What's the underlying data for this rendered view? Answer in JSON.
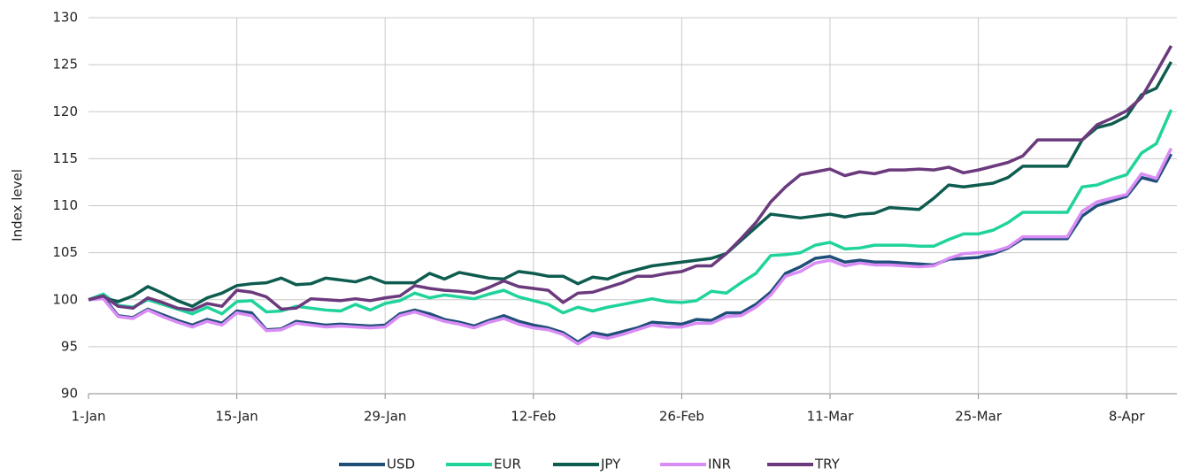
{
  "chart_data": {
    "type": "line",
    "y_label": "Index level",
    "categories": [
      "1-Jan",
      null,
      null,
      null,
      null,
      null,
      null,
      null,
      null,
      null,
      "15-Jan",
      null,
      null,
      null,
      null,
      null,
      null,
      null,
      null,
      null,
      "29-Jan",
      null,
      null,
      null,
      null,
      null,
      null,
      null,
      null,
      null,
      "12-Feb",
      null,
      null,
      null,
      null,
      null,
      null,
      null,
      null,
      null,
      "26-Feb",
      null,
      null,
      null,
      null,
      null,
      null,
      null,
      null,
      null,
      "11-Mar",
      null,
      null,
      null,
      null,
      null,
      null,
      null,
      null,
      null,
      "25-Mar",
      null,
      null,
      null,
      null,
      null,
      null,
      null,
      null,
      null,
      "8-Apr",
      null,
      null,
      null
    ],
    "ylim": [
      90,
      130
    ],
    "yticks": [
      90,
      95,
      100,
      105,
      110,
      115,
      120,
      125,
      130
    ],
    "grid": true,
    "legend": "bottom",
    "series": [
      {
        "name": "USD",
        "color": "#1f4e79",
        "values": [
          100,
          100.3,
          98.3,
          98.1,
          99,
          98.4,
          97.8,
          97.3,
          97.9,
          97.5,
          98.8,
          98.6,
          96.8,
          96.9,
          97.7,
          97.5,
          97.3,
          97.4,
          97.3,
          97.2,
          97.3,
          98.5,
          98.9,
          98.5,
          97.9,
          97.6,
          97.2,
          97.8,
          98.3,
          97.7,
          97.3,
          97.0,
          96.5,
          95.5,
          96.5,
          96.2,
          96.6,
          97.0,
          97.6,
          97.5,
          97.4,
          97.9,
          97.8,
          98.6,
          98.6,
          99.5,
          100.8,
          102.8,
          103.5,
          104.4,
          104.6,
          104.0,
          104.2,
          104.0,
          104.0,
          103.9,
          103.8,
          103.7,
          104.3,
          104.4,
          104.5,
          104.9,
          105.5,
          106.5,
          106.5,
          106.5,
          106.5,
          108.9,
          110.0,
          110.5,
          111.0,
          113.0,
          112.6,
          115.5
        ]
      },
      {
        "name": "EUR",
        "color": "#1fd39b",
        "values": [
          100,
          100.6,
          99.4,
          99.2,
          100,
          99.5,
          99.0,
          98.5,
          99.2,
          98.5,
          99.8,
          99.9,
          98.7,
          98.8,
          99.3,
          99.1,
          98.9,
          98.8,
          99.5,
          98.9,
          99.6,
          99.9,
          100.7,
          100.2,
          100.5,
          100.3,
          100.1,
          100.6,
          101.0,
          100.3,
          99.9,
          99.5,
          98.6,
          99.2,
          98.8,
          99.2,
          99.5,
          99.8,
          100.1,
          99.8,
          99.7,
          99.9,
          100.9,
          100.7,
          101.8,
          102.8,
          104.7,
          104.8,
          105.0,
          105.8,
          106.1,
          105.4,
          105.5,
          105.8,
          105.8,
          105.8,
          105.7,
          105.7,
          106.4,
          107.0,
          107.0,
          107.4,
          108.2,
          109.3,
          109.3,
          109.3,
          109.3,
          112.0,
          112.2,
          112.8,
          113.3,
          115.6,
          116.6,
          120.2
        ]
      },
      {
        "name": "JPY",
        "color": "#0e5c4f",
        "values": [
          100,
          100.2,
          99.8,
          100.4,
          101.4,
          100.7,
          99.9,
          99.3,
          100.2,
          100.7,
          101.5,
          101.7,
          101.8,
          102.3,
          101.6,
          101.7,
          102.3,
          102.1,
          101.9,
          102.4,
          101.8,
          101.8,
          101.8,
          102.8,
          102.2,
          102.9,
          102.6,
          102.3,
          102.2,
          103.0,
          102.8,
          102.5,
          102.5,
          101.7,
          102.4,
          102.2,
          102.8,
          103.2,
          103.6,
          103.8,
          104.0,
          104.2,
          104.4,
          104.9,
          106.3,
          107.7,
          109.1,
          108.9,
          108.7,
          108.9,
          109.1,
          108.8,
          109.1,
          109.2,
          109.8,
          109.7,
          109.6,
          110.8,
          112.2,
          112.0,
          112.2,
          112.4,
          113.0,
          114.2,
          114.2,
          114.2,
          114.2,
          117.0,
          118.3,
          118.7,
          119.5,
          121.8,
          122.5,
          125.3
        ]
      },
      {
        "name": "INR",
        "color": "#d98cf5",
        "values": [
          100,
          100.1,
          98.2,
          98.0,
          98.9,
          98.2,
          97.6,
          97.1,
          97.7,
          97.3,
          98.6,
          98.3,
          96.7,
          96.8,
          97.5,
          97.3,
          97.1,
          97.2,
          97.1,
          97.0,
          97.1,
          98.3,
          98.7,
          98.2,
          97.7,
          97.4,
          97.0,
          97.6,
          98.0,
          97.4,
          97.0,
          96.8,
          96.3,
          95.3,
          96.2,
          95.9,
          96.3,
          96.8,
          97.3,
          97.1,
          97.1,
          97.5,
          97.5,
          98.2,
          98.3,
          99.2,
          100.5,
          102.5,
          103.0,
          103.9,
          104.2,
          103.6,
          103.9,
          103.7,
          103.7,
          103.6,
          103.5,
          103.6,
          104.4,
          104.9,
          105.0,
          105.1,
          105.6,
          106.7,
          106.7,
          106.7,
          106.7,
          109.4,
          110.4,
          110.8,
          111.2,
          113.4,
          112.9,
          116.1
        ]
      },
      {
        "name": "TRY",
        "color": "#6b3a7d",
        "values": [
          100,
          100.4,
          99.3,
          99.1,
          100.2,
          99.7,
          99.1,
          98.9,
          99.6,
          99.3,
          101.0,
          100.8,
          100.3,
          99.0,
          99.1,
          100.1,
          100.0,
          99.9,
          100.1,
          99.9,
          100.2,
          100.4,
          101.5,
          101.2,
          101.0,
          100.9,
          100.7,
          101.3,
          102.0,
          101.4,
          101.2,
          101.0,
          99.7,
          100.7,
          100.8,
          101.3,
          101.8,
          102.5,
          102.5,
          102.8,
          103.0,
          103.6,
          103.6,
          104.9,
          106.5,
          108.2,
          110.4,
          112.0,
          113.3,
          113.6,
          113.9,
          113.2,
          113.6,
          113.4,
          113.8,
          113.8,
          113.9,
          113.8,
          114.1,
          113.5,
          113.8,
          114.2,
          114.6,
          115.3,
          117.0,
          117.0,
          117.0,
          117.0,
          118.6,
          119.3,
          120.1,
          121.5,
          124.2,
          127.0
        ]
      }
    ]
  }
}
